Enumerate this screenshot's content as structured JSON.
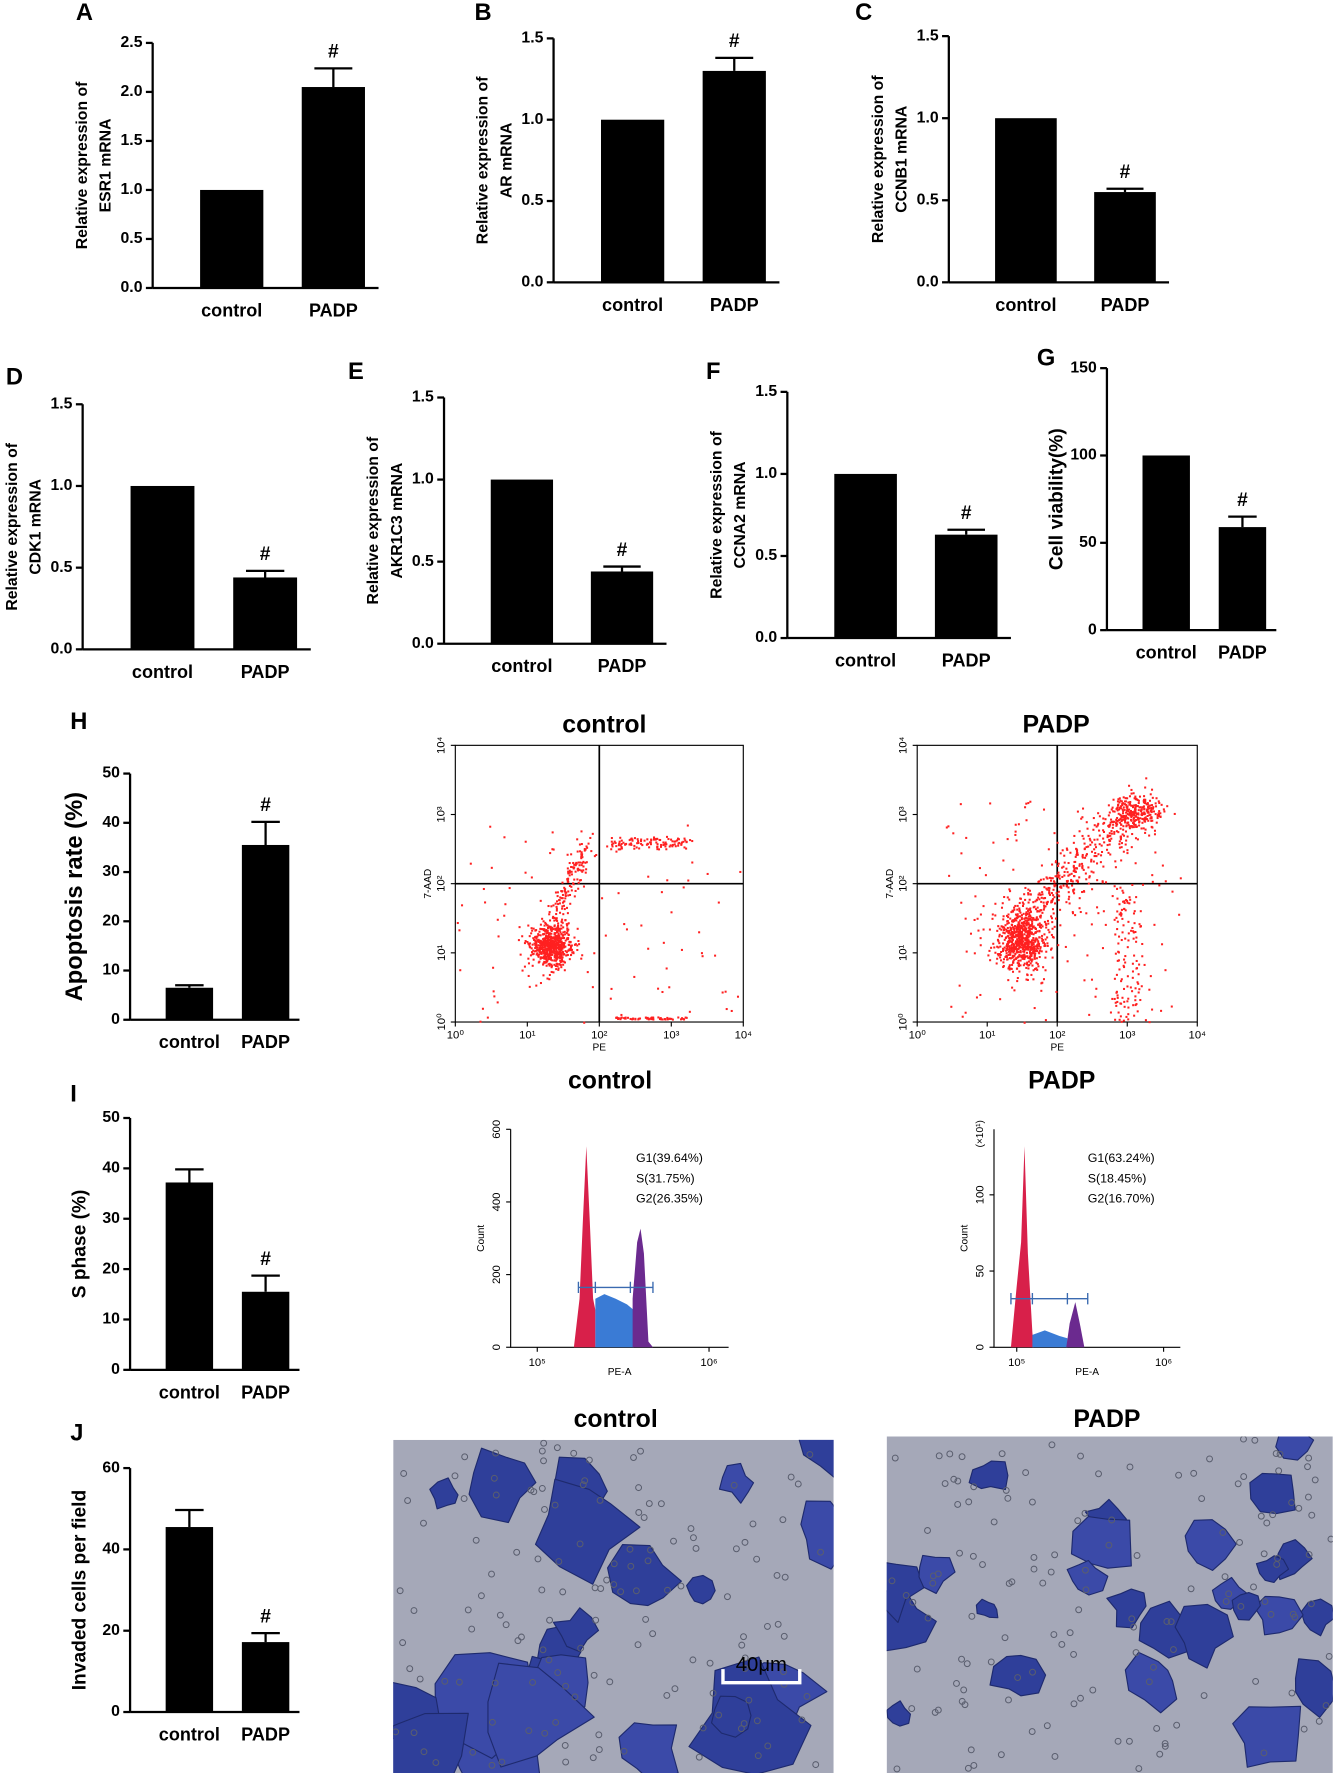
{
  "chart_data": [
    {
      "type": "bar",
      "panel": "A",
      "ylabel": [
        "Relative expression of",
        "ESR1 mRNA"
      ],
      "categories": [
        "control",
        "PADP"
      ],
      "values": [
        1,
        2.05
      ],
      "errors": [
        0,
        0.19
      ],
      "color": "#000000",
      "annotations": [
        {
          "category": "PADP",
          "text": "#"
        }
      ],
      "ylim": [
        0,
        2.5
      ],
      "yticks": [
        {
          "value": 0,
          "label": "0.0"
        },
        0.5,
        {
          "value": 1,
          "label": "1.0"
        },
        1.5,
        {
          "value": 2,
          "label": "2.0"
        },
        2.5
      ]
    },
    {
      "type": "bar",
      "panel": "B",
      "ylabel": [
        "Relative expression of",
        "AR mRNA"
      ],
      "categories": [
        "control",
        "PADP"
      ],
      "values": [
        1,
        1.3
      ],
      "errors": [
        0,
        0.08
      ],
      "color": "#000000",
      "annotations": [
        {
          "category": "PADP",
          "text": "#"
        }
      ],
      "ylim": [
        0,
        1.5
      ],
      "yticks": [
        {
          "value": 0,
          "label": "0.0"
        },
        0.5,
        {
          "value": 1,
          "label": "1.0"
        },
        1.5
      ]
    },
    {
      "type": "bar",
      "panel": "C",
      "ylabel": [
        "Relative expression of",
        "CCNB1 mRNA"
      ],
      "categories": [
        "control",
        "PADP"
      ],
      "values": [
        1,
        0.55
      ],
      "errors": [
        0,
        0.02
      ],
      "color": "#000000",
      "annotations": [
        {
          "category": "PADP",
          "text": "#"
        }
      ],
      "ylim": [
        0,
        1.5
      ],
      "yticks": [
        {
          "value": 0,
          "label": "0.0"
        },
        0.5,
        {
          "value": 1,
          "label": "1.0"
        },
        1.5
      ]
    },
    {
      "type": "bar",
      "panel": "D",
      "ylabel": [
        "Relative expression of",
        "CDK1 mRNA"
      ],
      "categories": [
        "control",
        "PADP"
      ],
      "values": [
        1,
        0.44
      ],
      "errors": [
        0,
        0.04
      ],
      "color": "#000000",
      "annotations": [
        {
          "category": "PADP",
          "text": "#"
        }
      ],
      "ylim": [
        0,
        1.5
      ],
      "yticks": [
        {
          "value": 0,
          "label": "0.0"
        },
        0.5,
        {
          "value": 1,
          "label": "1.0"
        },
        1.5
      ]
    },
    {
      "type": "bar",
      "panel": "E",
      "ylabel": [
        "Relative expression of",
        "AKR1C3 mRNA"
      ],
      "categories": [
        "control",
        "PADP"
      ],
      "values": [
        1,
        0.44
      ],
      "errors": [
        0,
        0.03
      ],
      "color": "#000000",
      "annotations": [
        {
          "category": "PADP",
          "text": "#"
        }
      ],
      "ylim": [
        0,
        1.5
      ],
      "yticks": [
        {
          "value": 0,
          "label": "0.0"
        },
        0.5,
        {
          "value": 1,
          "label": "1.0"
        },
        1.5
      ]
    },
    {
      "type": "bar",
      "panel": "F",
      "ylabel": [
        "Relative expression of",
        "CCNA2 mRNA"
      ],
      "categories": [
        "control",
        "PADP"
      ],
      "values": [
        1,
        0.63
      ],
      "errors": [
        0,
        0.03
      ],
      "color": "#000000",
      "annotations": [
        {
          "category": "PADP",
          "text": "#"
        }
      ],
      "ylim": [
        0,
        1.5
      ],
      "yticks": [
        {
          "value": 0,
          "label": "0.0"
        },
        0.5,
        {
          "value": 1,
          "label": "1.0"
        },
        1.5
      ]
    },
    {
      "type": "bar",
      "panel": "G",
      "ylabel": [
        "Cell viability(%)"
      ],
      "categories": [
        "control",
        "PADP"
      ],
      "values": [
        100,
        59
      ],
      "errors": [
        0,
        6
      ],
      "color": "#000000",
      "annotations": [
        {
          "category": "PADP",
          "text": "#"
        }
      ],
      "ylim": [
        0,
        150
      ],
      "yticks": [
        0,
        50,
        100,
        150
      ]
    },
    {
      "type": "bar",
      "panel": "H",
      "ylabel": [
        "Apoptosis rate (%)"
      ],
      "categories": [
        "control",
        "PADP"
      ],
      "values": [
        6.5,
        35.5
      ],
      "errors": [
        0.5,
        4.7
      ],
      "color": "#000000",
      "annotations": [
        {
          "category": "PADP",
          "text": "#"
        }
      ],
      "ylim": [
        0,
        50
      ],
      "yticks": [
        0,
        10,
        20,
        30,
        40,
        50
      ]
    },
    {
      "type": "bar",
      "panel": "I",
      "ylabel": [
        "S phase (%)"
      ],
      "categories": [
        "control",
        "PADP"
      ],
      "values": [
        37.2,
        15.5
      ],
      "errors": [
        2.6,
        3.2
      ],
      "color": "#000000",
      "annotations": [
        {
          "category": "PADP",
          "text": "#"
        }
      ],
      "ylim": [
        0,
        50
      ],
      "yticks": [
        0,
        10,
        20,
        30,
        40,
        50
      ]
    },
    {
      "type": "bar",
      "panel": "J",
      "ylabel": [
        "Invaded cells per field"
      ],
      "categories": [
        "control",
        "PADP"
      ],
      "values": [
        45.5,
        17.2
      ],
      "errors": [
        4.2,
        2.2
      ],
      "color": "#000000",
      "annotations": [
        {
          "category": "PADP",
          "text": "#"
        }
      ],
      "ylim": [
        0,
        60
      ],
      "yticks": [
        0,
        20,
        40,
        60
      ]
    }
  ],
  "flow_cytometry": [
    {
      "title": "control",
      "xlabel": "PE",
      "ylabel": "7-AAD",
      "log_scale": true,
      "xlim": [
        1,
        10000
      ],
      "ylim": [
        1,
        10000
      ],
      "xticks": [
        {
          "value": 1,
          "label": "10⁰"
        },
        {
          "value": 10,
          "label": "10¹"
        },
        {
          "value": 100,
          "label": "10²"
        },
        {
          "value": 1000,
          "label": "10³"
        },
        {
          "value": 10000,
          "label": "10⁴"
        }
      ],
      "yticks": [
        {
          "value": 1,
          "label": "10⁰"
        },
        {
          "value": 10,
          "label": "10¹"
        },
        {
          "value": 100,
          "label": "10²"
        },
        {
          "value": 1000,
          "label": "10³"
        },
        {
          "value": 10000,
          "label": "10⁴"
        }
      ],
      "color": "#ff2020"
    },
    {
      "title": "PADP",
      "xlabel": "PE",
      "ylabel": "7-AAD",
      "log_scale": true,
      "xlim": [
        1,
        10000
      ],
      "ylim": [
        1,
        10000
      ],
      "xticks": [
        {
          "value": 1,
          "label": "10⁰"
        },
        {
          "value": 10,
          "label": "10¹"
        },
        {
          "value": 100,
          "label": "10²"
        },
        {
          "value": 1000,
          "label": "10³"
        },
        {
          "value": 10000,
          "label": "10⁴"
        }
      ],
      "yticks": [
        {
          "value": 1,
          "label": "10⁰"
        },
        {
          "value": 10,
          "label": "10¹"
        },
        {
          "value": 100,
          "label": "10²"
        },
        {
          "value": 1000,
          "label": "10³"
        },
        {
          "value": 10000,
          "label": "10⁴"
        }
      ],
      "color": "#ff2020"
    }
  ],
  "cell_cycle": [
    {
      "title": "control",
      "xlabel": "PE-A",
      "ylabel": "Count",
      "log_x": true,
      "xlim": [
        70000,
        1300000
      ],
      "xticks": [
        {
          "value": 100000,
          "label": "10⁵"
        },
        {
          "value": 1000000,
          "label": "10⁶"
        }
      ],
      "ylim": [
        0,
        600
      ],
      "yticks": [
        0,
        200,
        400,
        600
      ],
      "legend": [
        {
          "text": "G1(39.64%)",
          "color": "#e8243c"
        },
        {
          "text": "S(31.75%)",
          "color": "#3a7bd5"
        },
        {
          "text": "G2(26.35%)",
          "color": "#7b2a8f"
        }
      ]
    },
    {
      "title": "PADP",
      "xlabel": "PE-A",
      "ylabel": "Count",
      "y_multiplier": "(×10¹)",
      "log_x": true,
      "xlim": [
        70000,
        1300000
      ],
      "xticks": [
        {
          "value": 100000,
          "label": "10⁵"
        },
        {
          "value": 1000000,
          "label": "10⁶"
        }
      ],
      "ylim": [
        0,
        143
      ],
      "yticks": [
        0,
        50,
        100
      ],
      "legend": [
        {
          "text": "G1(63.24%)",
          "color": "#e8243c"
        },
        {
          "text": "S(18.45%)",
          "color": "#3a7bd5"
        },
        {
          "text": "G2(16.70%)",
          "color": "#7b2a8f"
        }
      ]
    }
  ],
  "micrographs": [
    {
      "title": "control",
      "scale_bar": "40μm"
    },
    {
      "title": "PADP"
    }
  ]
}
